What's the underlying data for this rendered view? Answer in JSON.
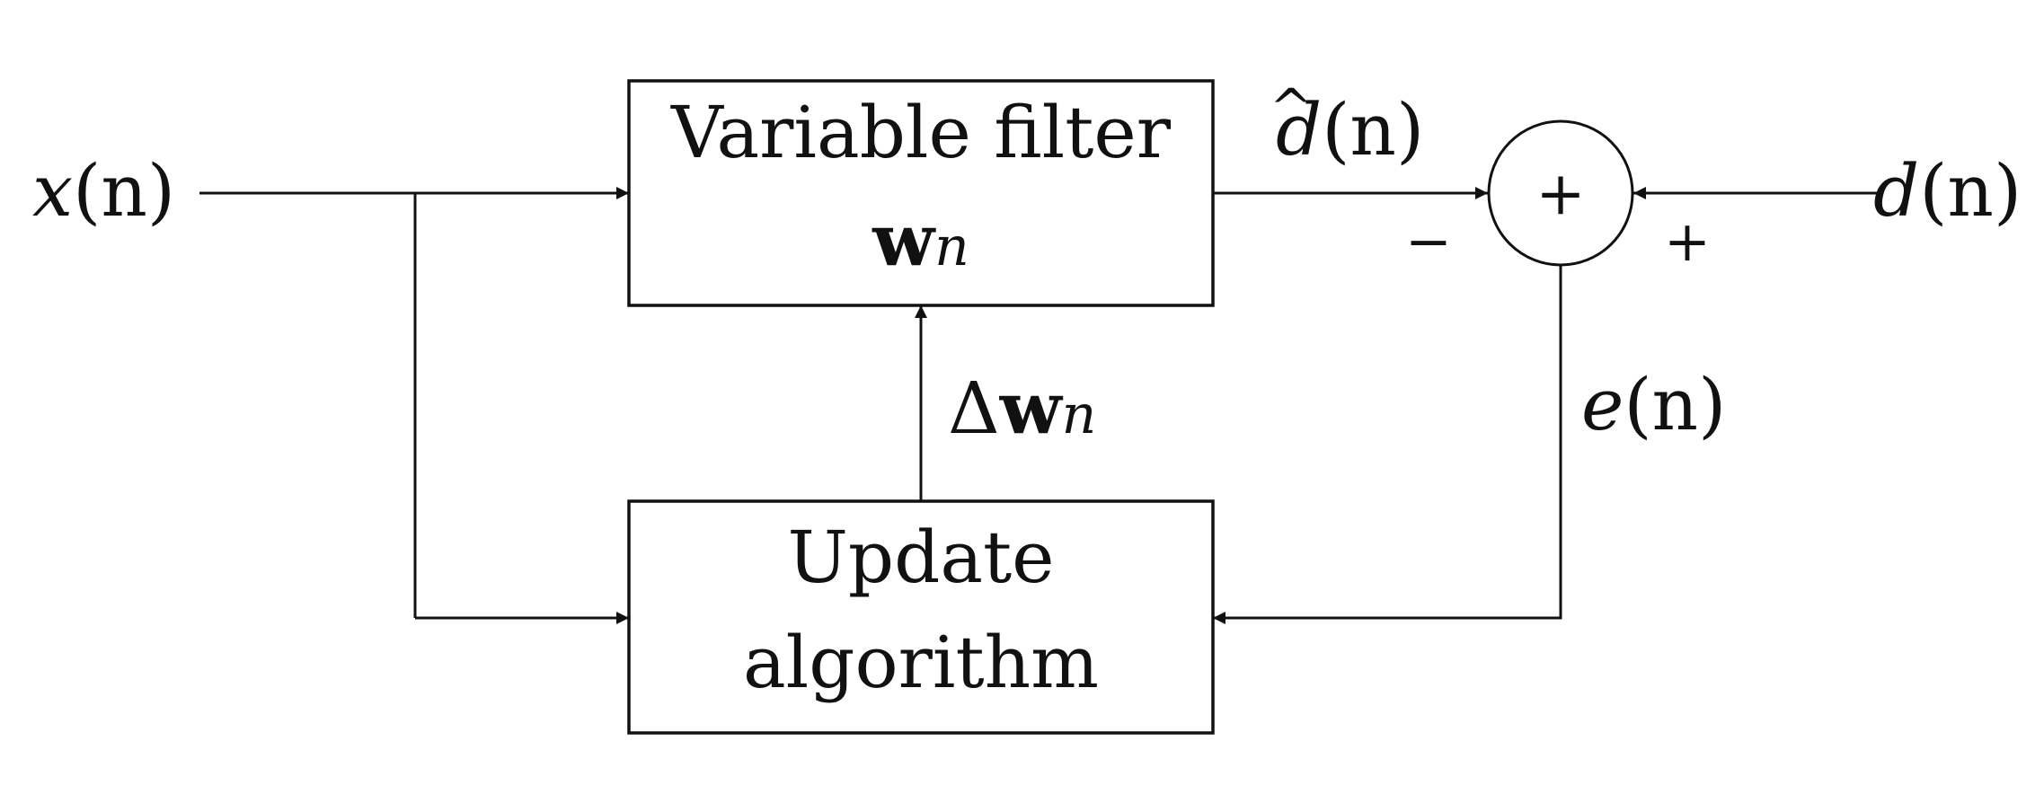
{
  "blocks": {
    "filter": {
      "line1": "Variable filter",
      "weight_symbol": "w",
      "weight_subscript": "n"
    },
    "update": {
      "line1": "Update",
      "line2": "algorithm"
    }
  },
  "signals": {
    "input": {
      "symbol": "x",
      "arg": "(n)"
    },
    "desired": {
      "symbol": "d",
      "arg": "(n)"
    },
    "estimate": {
      "symbol": "d",
      "hat": "^",
      "arg": "(n)"
    },
    "error": {
      "symbol": "e",
      "arg": "(n)"
    },
    "weight_update": {
      "delta": "Δ",
      "symbol": "w",
      "subscript": "n"
    }
  },
  "summer": {
    "symbol": "+",
    "minus_sign": "−",
    "plus_sign": "+"
  }
}
